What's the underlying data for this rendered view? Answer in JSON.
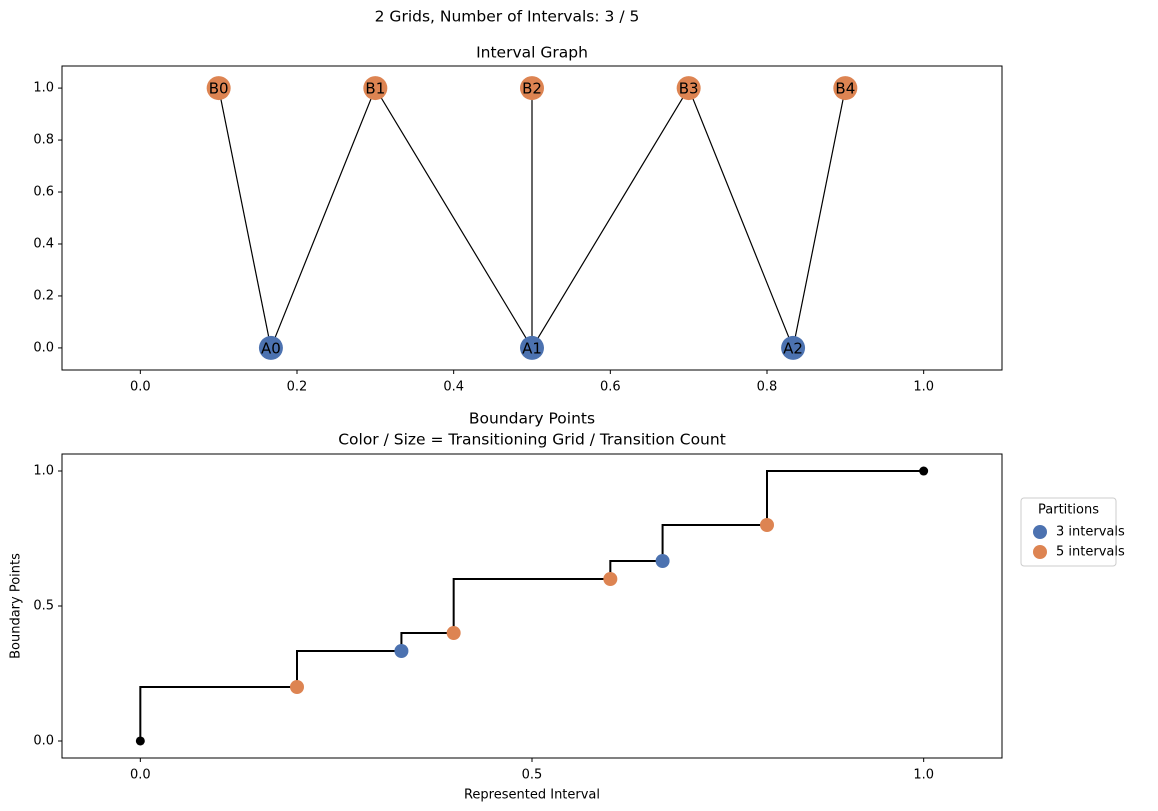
{
  "title": "2 Grids, Number of Intervals: 3 / 5",
  "chart_data": [
    {
      "type": "graph",
      "title": "Interval Graph",
      "xlim": [
        -0.1,
        1.1
      ],
      "ylim": [
        -0.085,
        1.085
      ],
      "xticks": [
        {
          "value": 0,
          "label": "0.0"
        },
        {
          "value": 0.2,
          "label": "0.2"
        },
        {
          "value": 0.4,
          "label": "0.4"
        },
        {
          "value": 0.6,
          "label": "0.6"
        },
        {
          "value": 0.8,
          "label": "0.8"
        },
        {
          "value": 1,
          "label": "1.0"
        }
      ],
      "yticks": [
        {
          "value": 0,
          "label": "0.0"
        },
        {
          "value": 0.2,
          "label": "0.2"
        },
        {
          "value": 0.4,
          "label": "0.4"
        },
        {
          "value": 0.6,
          "label": "0.6"
        },
        {
          "value": 0.8,
          "label": "0.8"
        },
        {
          "value": 1,
          "label": "1.0"
        }
      ],
      "nodes": [
        {
          "label": "A0",
          "x": 0.1667,
          "y": 0,
          "color": "#4c72b0"
        },
        {
          "label": "A1",
          "x": 0.5,
          "y": 0,
          "color": "#4c72b0"
        },
        {
          "label": "A2",
          "x": 0.8333,
          "y": 0,
          "color": "#4c72b0"
        },
        {
          "label": "B0",
          "x": 0.1,
          "y": 1,
          "color": "#dd8452"
        },
        {
          "label": "B1",
          "x": 0.3,
          "y": 1,
          "color": "#dd8452"
        },
        {
          "label": "B2",
          "x": 0.5,
          "y": 1,
          "color": "#dd8452"
        },
        {
          "label": "B3",
          "x": 0.7,
          "y": 1,
          "color": "#dd8452"
        },
        {
          "label": "B4",
          "x": 0.9,
          "y": 1,
          "color": "#dd8452"
        }
      ],
      "edges": [
        [
          "B0",
          "A0"
        ],
        [
          "A0",
          "B1"
        ],
        [
          "B1",
          "A1"
        ],
        [
          "B2",
          "A1"
        ],
        [
          "A1",
          "B3"
        ],
        [
          "B3",
          "A2"
        ],
        [
          "A2",
          "B4"
        ]
      ]
    },
    {
      "type": "step",
      "title": [
        "Boundary Points",
        "Color / Size = Transitioning Grid / Transition Count"
      ],
      "x_label": "Represented Interval",
      "y_label": "Boundary Points",
      "xlim": [
        -0.1,
        1.1
      ],
      "ylim": [
        -0.063,
        1.063
      ],
      "xticks": [
        {
          "value": 0,
          "label": "0.0"
        },
        {
          "value": 0.5,
          "label": "0.5"
        },
        {
          "value": 1,
          "label": "1.0"
        }
      ],
      "yticks": [
        {
          "value": 0,
          "label": "0.0"
        },
        {
          "value": 0.5,
          "label": "0.5"
        },
        {
          "value": 1,
          "label": "1.0"
        }
      ],
      "line": {
        "step": "pre",
        "color": "#000000",
        "x": [
          0,
          0.2,
          0.3333,
          0.4,
          0.6,
          0.6667,
          0.8,
          1
        ],
        "y": [
          0,
          0.2,
          0.3333,
          0.4,
          0.6,
          0.6667,
          0.8,
          1
        ]
      },
      "endpoints": {
        "color": "#000000",
        "x": [
          0,
          1
        ],
        "y": [
          0,
          1
        ]
      },
      "legend_title": "Partitions",
      "legend": "outside right",
      "series": [
        {
          "name": "3 intervals",
          "color": "#4c72b0",
          "x": [
            0.3333,
            0.6667
          ],
          "values": [
            0.3333,
            0.6667
          ]
        },
        {
          "name": "5 intervals",
          "color": "#dd8452",
          "x": [
            0.2,
            0.4,
            0.6,
            0.8
          ],
          "values": [
            0.2,
            0.4,
            0.6,
            0.8
          ]
        }
      ]
    }
  ]
}
